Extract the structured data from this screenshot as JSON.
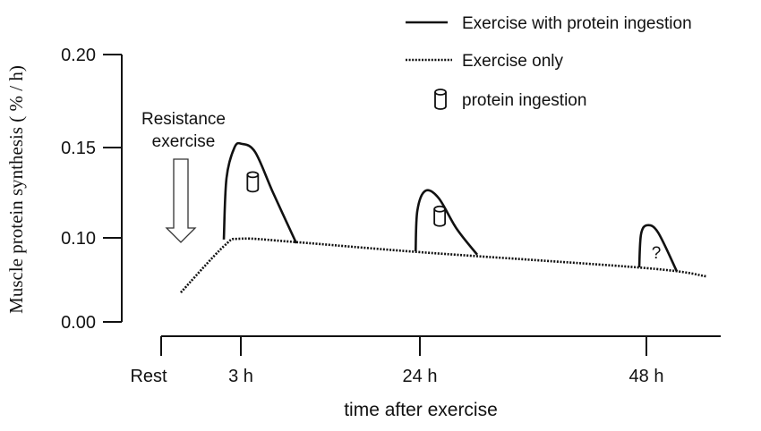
{
  "chart_data": {
    "type": "line",
    "title": "",
    "xlabel": "time after exercise",
    "ylabel": "Muscle protein synthesis ( % / h)",
    "y_ticks": [
      0.0,
      0.1,
      0.15,
      0.2
    ],
    "y_tick_labels": [
      "0.00",
      "0.10",
      "0.15",
      "0.20"
    ],
    "x_ticks": [
      0,
      3,
      24,
      48
    ],
    "x_tick_labels": [
      "Rest",
      "3 h",
      "24 h",
      "48 h"
    ],
    "xlim": [
      0,
      54
    ],
    "ylim": [
      0,
      0.2
    ],
    "grid": false,
    "legend_position": "top-right",
    "legend": [
      {
        "label": "Exercise with protein ingestion",
        "style": "solid"
      },
      {
        "label": "Exercise only",
        "style": "dotted"
      },
      {
        "label": "protein ingestion",
        "style": "cylinder-icon"
      }
    ],
    "series": [
      {
        "name": "Exercise only",
        "style": "dotted",
        "x": [
          0.74,
          2.36,
          3.0,
          9.4,
          24,
          48,
          52.9
        ],
        "y": [
          0.035,
          0.09,
          0.099,
          0.095,
          0.083,
          0.064,
          0.054
        ]
      },
      {
        "name": "Exercise with protein ingestion (3 h)",
        "style": "solid",
        "x": [
          2.36,
          2.46,
          2.76,
          3.1,
          4.68,
          6.78,
          9.51
        ],
        "y": [
          0.098,
          0.133,
          0.15,
          0.152,
          0.1475,
          0.125,
          0.0936
        ]
      },
      {
        "name": "Exercise with protein ingestion (24 h)",
        "style": "solid",
        "x": [
          23.5,
          23.7,
          24.57,
          25.99,
          27.9,
          30.07
        ],
        "y": [
          0.084,
          0.115,
          0.126,
          0.122,
          0.105,
          0.08
        ]
      },
      {
        "name": "Exercise with protein ingestion (48 h)",
        "style": "solid",
        "x": [
          47.24,
          47.43,
          48.07,
          48.94,
          50.46
        ],
        "y": [
          0.065,
          0.102,
          0.107,
          0.103,
          0.06
        ]
      }
    ],
    "markers": [
      {
        "type": "protein-ingestion",
        "x": 4.4,
        "y": 0.131
      },
      {
        "type": "protein-ingestion",
        "x": 26.1,
        "y": 0.112
      },
      {
        "type": "question",
        "label": "?",
        "x": 48.8,
        "y": 0.083
      }
    ],
    "annotations": [
      {
        "text_lines": [
          "Resistance",
          "exercise"
        ],
        "type": "down-arrow",
        "x": 0.74
      }
    ]
  }
}
